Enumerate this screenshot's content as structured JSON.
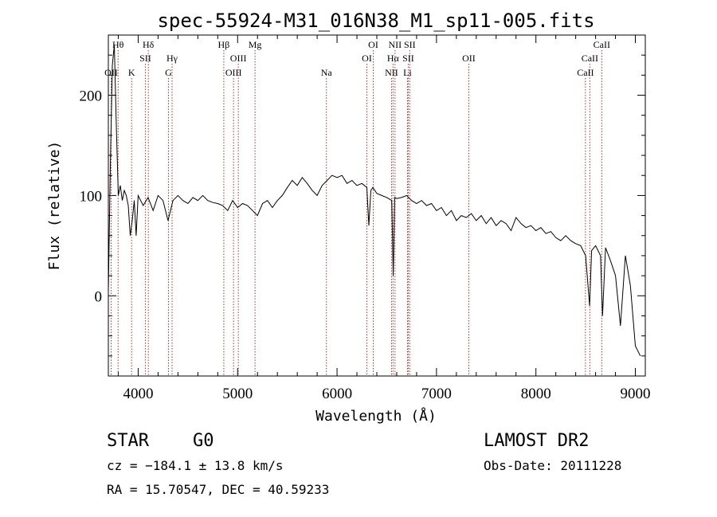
{
  "title": "spec-55924-M31_016N38_M1_sp11-005.fits",
  "info": {
    "class_label": "STAR",
    "subclass_label": "G0",
    "survey_label": "LAMOST DR2",
    "velocity_text": "cz = −184.1 ± 13.8 km/s",
    "obs_date_text": "Obs-Date: 20111228",
    "coords_text": "RA =  15.70547, DEC =  40.59233"
  },
  "chart_data": {
    "type": "line",
    "title": "spec-55924-M31_016N38_M1_sp11-005.fits",
    "xlabel": "Wavelength (Å)",
    "ylabel": "Flux (relative)",
    "xlim": [
      3700,
      9100
    ],
    "ylim": [
      -80,
      260
    ],
    "x_ticks": [
      4000,
      5000,
      6000,
      7000,
      8000,
      9000
    ],
    "y_ticks": [
      0,
      100,
      200
    ],
    "line_color": "#000000",
    "marker_color": "#b03030",
    "series": [
      {
        "x": [
          3700,
          3720,
          3740,
          3760,
          3780,
          3800,
          3820,
          3840,
          3860,
          3880,
          3900,
          3920,
          3940,
          3960,
          3980,
          4000,
          4050,
          4100,
          4150,
          4200,
          4250,
          4300,
          4350,
          4400,
          4450,
          4500,
          4550,
          4600,
          4650,
          4700,
          4750,
          4800,
          4850,
          4900,
          4950,
          5000,
          5050,
          5100,
          5150,
          5200,
          5250,
          5300,
          5350,
          5400,
          5450,
          5500,
          5550,
          5600,
          5650,
          5700,
          5750,
          5800,
          5850,
          5900,
          5950,
          6000,
          6050,
          6100,
          6150,
          6200,
          6250,
          6300,
          6320,
          6340,
          6360,
          6400,
          6450,
          6500,
          6550,
          6565,
          6580,
          6600,
          6650,
          6700,
          6750,
          6800,
          6850,
          6900,
          6950,
          7000,
          7050,
          7100,
          7150,
          7200,
          7250,
          7300,
          7350,
          7400,
          7450,
          7500,
          7550,
          7600,
          7650,
          7700,
          7750,
          7800,
          7850,
          7900,
          7950,
          8000,
          8050,
          8100,
          8150,
          8200,
          8250,
          8300,
          8350,
          8400,
          8450,
          8500,
          8540,
          8560,
          8600,
          8650,
          8670,
          8700,
          8750,
          8800,
          8850,
          8900,
          8950,
          9000,
          9050
        ],
        "y": [
          5,
          130,
          230,
          250,
          170,
          100,
          110,
          95,
          105,
          100,
          90,
          60,
          75,
          95,
          60,
          100,
          90,
          98,
          85,
          100,
          95,
          75,
          95,
          100,
          95,
          92,
          98,
          95,
          100,
          95,
          93,
          92,
          90,
          85,
          95,
          88,
          92,
          90,
          85,
          80,
          92,
          95,
          88,
          95,
          100,
          108,
          115,
          110,
          118,
          112,
          105,
          100,
          110,
          115,
          120,
          118,
          120,
          112,
          115,
          110,
          112,
          108,
          70,
          105,
          108,
          102,
          100,
          98,
          95,
          20,
          98,
          97,
          98,
          100,
          95,
          92,
          95,
          90,
          92,
          85,
          88,
          80,
          85,
          75,
          80,
          78,
          82,
          75,
          80,
          72,
          78,
          70,
          75,
          72,
          65,
          78,
          72,
          68,
          70,
          65,
          68,
          62,
          64,
          58,
          55,
          60,
          55,
          52,
          50,
          40,
          -10,
          45,
          50,
          40,
          -20,
          48,
          35,
          20,
          -30,
          40,
          10,
          -50,
          -60
        ]
      }
    ],
    "spectral_lines": [
      {
        "label": "Hθ",
        "wavelength": 3798,
        "row": 1
      },
      {
        "label": "OII",
        "wavelength": 3728,
        "row": 3
      },
      {
        "label": "K",
        "wavelength": 3934,
        "row": 3
      },
      {
        "label": "Hδ",
        "wavelength": 4102,
        "row": 1
      },
      {
        "label": "SII",
        "wavelength": 4072,
        "row": 2
      },
      {
        "label": "Hγ",
        "wavelength": 4341,
        "row": 2
      },
      {
        "label": "G",
        "wavelength": 4305,
        "row": 3
      },
      {
        "label": "Hβ",
        "wavelength": 4861,
        "row": 1
      },
      {
        "label": "OIII",
        "wavelength": 5007,
        "row": 2
      },
      {
        "label": "OIII",
        "wavelength": 4959,
        "row": 3
      },
      {
        "label": "Mg",
        "wavelength": 5175,
        "row": 1
      },
      {
        "label": "Na",
        "wavelength": 5893,
        "row": 3
      },
      {
        "label": "OI",
        "wavelength": 6364,
        "row": 1
      },
      {
        "label": "OI",
        "wavelength": 6300,
        "row": 2
      },
      {
        "label": "NII",
        "wavelength": 6583,
        "row": 1
      },
      {
        "label": "Hα",
        "wavelength": 6563,
        "row": 2
      },
      {
        "label": "NII",
        "wavelength": 6548,
        "row": 3
      },
      {
        "label": "SII",
        "wavelength": 6731,
        "row": 1
      },
      {
        "label": "SII",
        "wavelength": 6716,
        "row": 2
      },
      {
        "label": "Li",
        "wavelength": 6708,
        "row": 3
      },
      {
        "label": "OII",
        "wavelength": 7325,
        "row": 2
      },
      {
        "label": "CaII",
        "wavelength": 8662,
        "row": 1
      },
      {
        "label": "CaII",
        "wavelength": 8542,
        "row": 2
      },
      {
        "label": "CaII",
        "wavelength": 8498,
        "row": 3
      }
    ]
  }
}
